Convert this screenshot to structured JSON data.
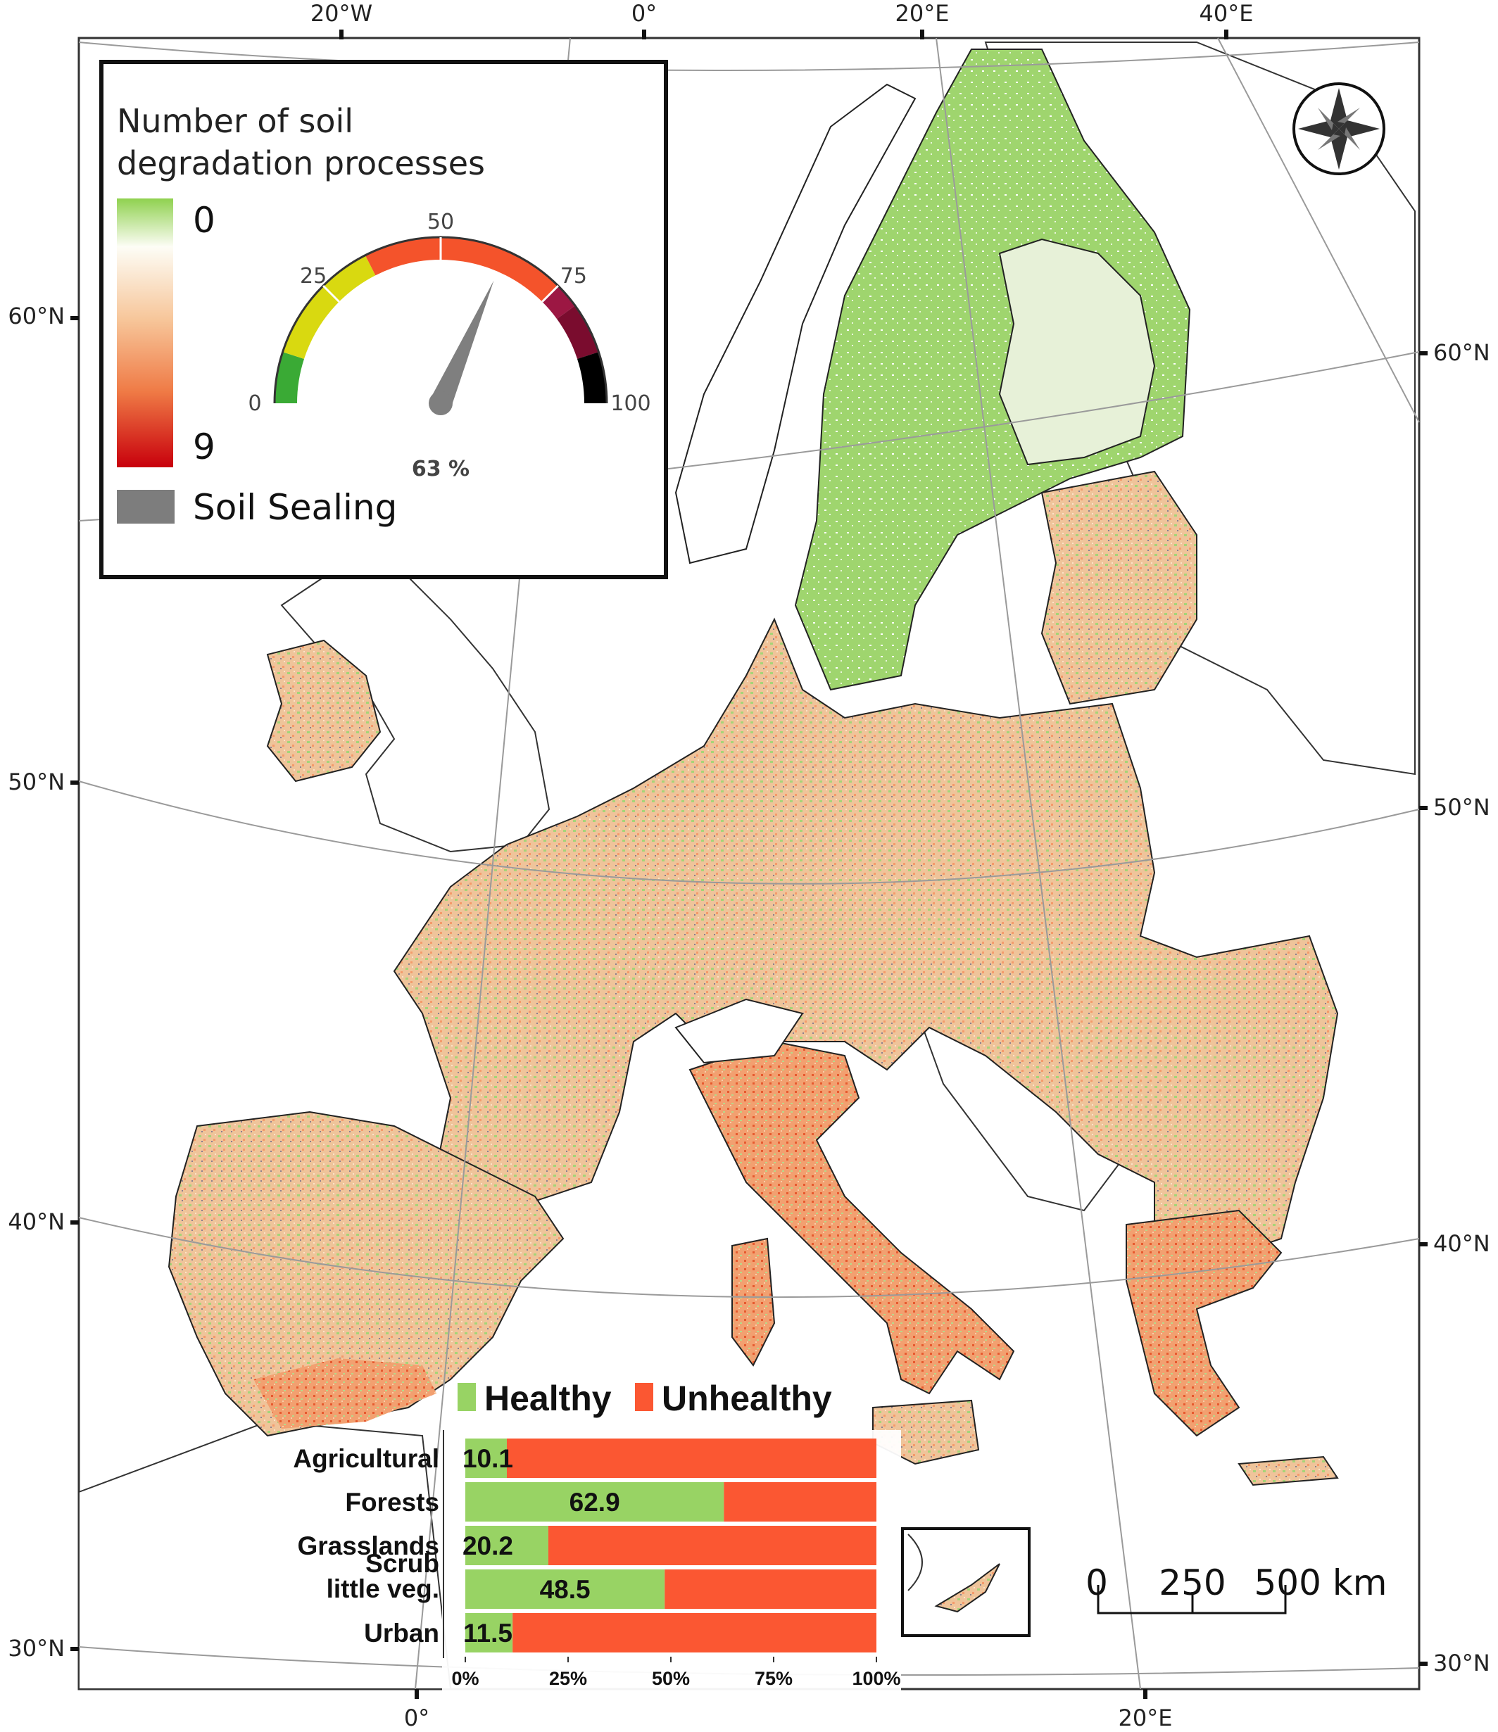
{
  "graticule_labels": {
    "top": [
      "20°W",
      "0°",
      "20°E",
      "40°E"
    ],
    "bottom": [
      "0°",
      "20°E"
    ],
    "left": [
      "60°N",
      "50°N",
      "40°N",
      "30°N"
    ],
    "right": [
      "60°N",
      "50°N",
      "40°N",
      "30°N"
    ]
  },
  "legend": {
    "title_line1": "Number of soil",
    "title_line2": "degradation processes",
    "min_label": "0",
    "max_label": "9",
    "sealing_label": "Soil Sealing",
    "colors": {
      "low": "#8fd14f",
      "mid": "#fdfdf6",
      "high": "#c8000c",
      "sealing": "#7d7d7d"
    }
  },
  "gauge": {
    "value": 63,
    "value_label": "63 %",
    "ticks": [
      "0",
      "25",
      "50",
      "75",
      "100"
    ],
    "bands": [
      {
        "from": 0,
        "to": 10,
        "color": "#3aaa35"
      },
      {
        "from": 10,
        "to": 35,
        "color": "#d9d910"
      },
      {
        "from": 35,
        "to": 75,
        "color": "#f4532b"
      },
      {
        "from": 75,
        "to": 80,
        "color": "#9c1743"
      },
      {
        "from": 80,
        "to": 90,
        "color": "#7a0c2e"
      },
      {
        "from": 90,
        "to": 100,
        "color": "#000000"
      }
    ]
  },
  "bar_chart": {
    "legend": [
      "Healthy",
      "Unhealthy"
    ],
    "colors": {
      "healthy": "#98d364",
      "unhealthy": "#fb5732"
    },
    "x_ticks": [
      "0%",
      "25%",
      "50%",
      "75%",
      "100%"
    ],
    "rows": [
      {
        "label": [
          "Agricultural"
        ],
        "healthy": 10.1,
        "value_label": "10.1"
      },
      {
        "label": [
          "Forests"
        ],
        "healthy": 62.9,
        "value_label": "62.9"
      },
      {
        "label": [
          "Grasslands"
        ],
        "healthy": 20.2,
        "value_label": "20.2"
      },
      {
        "label": [
          "Scrub",
          "little veg."
        ],
        "healthy": 48.5,
        "value_label": "48.5"
      },
      {
        "label": [
          "Urban"
        ],
        "healthy": 11.5,
        "value_label": "11.5"
      }
    ]
  },
  "scale_bar": {
    "labels": [
      "0",
      "250",
      "500 km"
    ]
  },
  "compass": {
    "icon": "compass-rose-icon"
  },
  "map_colors": {
    "sea": "#ffffff",
    "outside_eu": "#ffffff",
    "nordic": "#9bd36a",
    "central": "#efc49a",
    "south_hot": "#f19a6a",
    "border": "#333333",
    "graticule": "#9a9a9a"
  }
}
